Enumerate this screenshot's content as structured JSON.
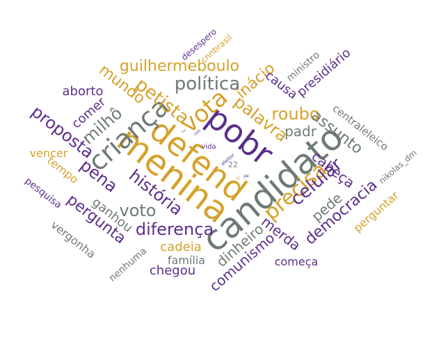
{
  "palette": {
    "gold": "#D6A12A",
    "purple": "#5B2E8A",
    "gray": "#6E7A74"
  },
  "words": [
    {
      "text": "candidato",
      "color": "gray"
    },
    {
      "text": "menina",
      "color": "gold"
    },
    {
      "text": "defend",
      "color": "gold"
    },
    {
      "text": "pobr",
      "color": "purple"
    },
    {
      "text": "criança",
      "color": "gray"
    },
    {
      "text": "vota",
      "color": "gold"
    },
    {
      "text": "precisa",
      "color": "gold"
    },
    {
      "text": "política",
      "color": "gray"
    },
    {
      "text": "história",
      "color": "purple"
    },
    {
      "text": "celular",
      "color": "purple"
    },
    {
      "text": "diferença",
      "color": "purple"
    },
    {
      "text": "roubo",
      "color": "gold"
    },
    {
      "text": "guilhermeboulo",
      "color": "gold"
    },
    {
      "text": "petista",
      "color": "gold"
    },
    {
      "text": "voto",
      "color": "gray"
    },
    {
      "text": "proposta",
      "color": "purple"
    },
    {
      "text": "palavra",
      "color": "gold"
    },
    {
      "text": "democracia",
      "color": "purple"
    },
    {
      "text": "pergunta",
      "color": "purple"
    },
    {
      "text": "milhô",
      "color": "gray"
    },
    {
      "text": "mundo",
      "color": "gold"
    },
    {
      "text": "pena",
      "color": "purple"
    },
    {
      "text": "inácio",
      "color": "gold"
    },
    {
      "text": "assunto",
      "color": "gray"
    },
    {
      "text": "cabeça",
      "color": "purple"
    },
    {
      "text": "merda",
      "color": "purple"
    },
    {
      "text": "dinheiro",
      "color": "gray"
    },
    {
      "text": "comunismo",
      "color": "purple"
    },
    {
      "text": "pede",
      "color": "gray"
    },
    {
      "text": "padr",
      "color": "gray"
    },
    {
      "text": "ganhou",
      "color": "gray"
    },
    {
      "text": "cadeia",
      "color": "gold"
    },
    {
      "text": "presidiário",
      "color": "purple"
    },
    {
      "text": "causa",
      "color": "purple"
    },
    {
      "text": "perguntar",
      "color": "gold"
    },
    {
      "text": "começa",
      "color": "purple"
    },
    {
      "text": "família",
      "color": "gray"
    },
    {
      "text": "chegou",
      "color": "purple"
    },
    {
      "text": "aborto",
      "color": "purple"
    },
    {
      "text": "comer",
      "color": "purple"
    },
    {
      "text": "vencer",
      "color": "gold"
    },
    {
      "text": "tempo",
      "color": "gold"
    },
    {
      "text": "vergonha",
      "color": "gray"
    },
    {
      "text": "centraleleico",
      "color": "gray"
    },
    {
      "text": "pesquisa",
      "color": "purple"
    },
    {
      "text": "ministro",
      "color": "gray"
    },
    {
      "text": "nenhuma",
      "color": "gray"
    },
    {
      "text": "nikolas_dm",
      "color": "gray"
    },
    {
      "text": "desespero",
      "color": "purple"
    },
    {
      "text": "cnnbrasil",
      "color": "gold"
    },
    {
      "text": "vida",
      "color": "purple"
    },
    {
      "text": "eleitor",
      "color": "purple"
    },
    {
      "text": "22",
      "color": "gray"
    },
    {
      "text": "vi",
      "color": "gold"
    },
    {
      "text": "pe",
      "color": "purple"
    },
    {
      "text": "tv",
      "color": "gray"
    },
    {
      "text": "ceo",
      "color": "purple"
    }
  ]
}
